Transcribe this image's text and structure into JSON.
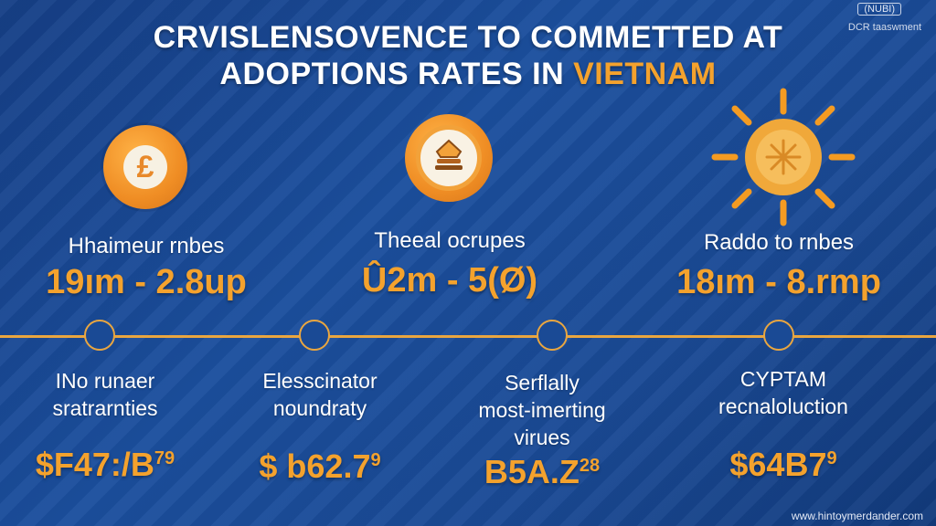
{
  "header": {
    "title_line1": "CRVISLENSOVENCE TO COMMETTED AT",
    "title_line2_a": "ADOPTIONS  RATES  IN",
    "title_line2_b": "VIETNAM",
    "logo_text": "(NUBI)",
    "logo_subtext": "DCR taaswment"
  },
  "top_stats": [
    {
      "icon": "currency-coin-icon",
      "label": "Hhaimeur rnbes",
      "value": "19ım - 2.8up"
    },
    {
      "icon": "gem-coin-icon",
      "label": "Theeal ocrupes",
      "value": "Û2m - 5(Ø)"
    },
    {
      "icon": "sun-icon",
      "label": "Raddo to rnbes",
      "value": "18ım - 8.rmp"
    }
  ],
  "bottom_stats": [
    {
      "label_lines": [
        "INo runaer",
        "sratrarnties"
      ],
      "value": "$F47:/B",
      "sup": "79"
    },
    {
      "label_lines": [
        "Elesscinator",
        "noundraty"
      ],
      "value": "$ b62.7",
      "sup": "9"
    },
    {
      "label_lines": [
        "Serflally",
        "most-imerting",
        "virues"
      ],
      "value": "B5A.Z",
      "sup": "28"
    },
    {
      "label_lines": [
        "CYPTAM",
        "recnaloluction"
      ],
      "value": "$64B7",
      "sup": "9"
    }
  ],
  "footer": {
    "website": "www.hintoymerdander.com"
  },
  "colors": {
    "accent": "#f4a22d",
    "background": "#1a4a95",
    "text": "#ffffff"
  }
}
